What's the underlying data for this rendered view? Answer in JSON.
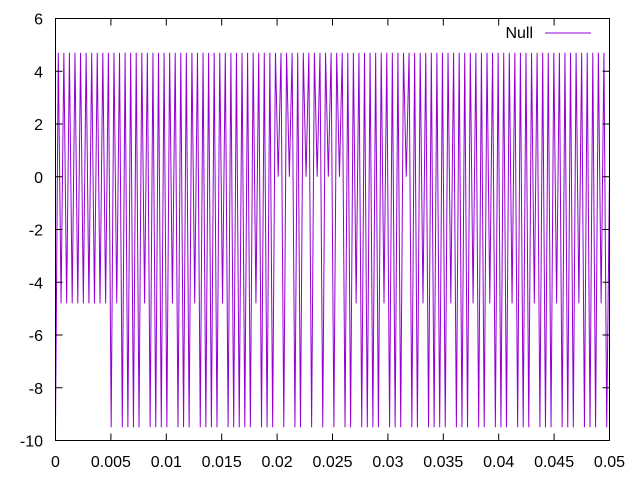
{
  "chart_data": {
    "type": "line",
    "title": "",
    "xlabel": "",
    "ylabel": "",
    "xlim": [
      0,
      0.05
    ],
    "ylim": [
      -10,
      6
    ],
    "xticks": [
      "0",
      "0.005",
      "0.01",
      "0.015",
      "0.02",
      "0.025",
      "0.03",
      "0.035",
      "0.04",
      "0.045",
      "0.05"
    ],
    "yticks": [
      "-10",
      "-8",
      "-6",
      "-4",
      "-2",
      "0",
      "2",
      "4",
      "6"
    ],
    "grid": false,
    "legend_position": "top-right",
    "series": [
      {
        "name": "Null",
        "color": "#9400d3",
        "x_range": [
          0,
          0.05
        ],
        "values": [
          -9.5,
          4.7,
          -4.8,
          4.7,
          -4.8,
          4.7,
          -4.8,
          4.7,
          -4.8,
          4.7,
          -4.8,
          4.7,
          -4.8,
          4.7,
          -4.8,
          4.7,
          -4.8,
          4.7,
          -4.8,
          4.7,
          -9.5,
          4.7,
          -4.8,
          4.7,
          -9.5,
          4.7,
          -9.5,
          4.7,
          -9.5,
          4.7,
          -9.5,
          4.7,
          -4.8,
          4.7,
          -9.5,
          4.7,
          -9.5,
          4.7,
          -9.5,
          4.7,
          -9.5,
          4.7,
          -4.8,
          4.7,
          -9.5,
          4.7,
          -9.5,
          4.7,
          -9.5,
          4.7,
          -4.8,
          4.7,
          -9.5,
          4.7,
          -9.5,
          4.7,
          -9.5,
          4.7,
          -9.5,
          4.7,
          -4.8,
          4.7,
          -9.5,
          4.7,
          -9.5,
          4.7,
          -9.5,
          4.7,
          -9.5,
          4.7,
          -9.5,
          4.7,
          -4.8,
          4.7,
          -9.5,
          4.7,
          -9.5,
          4.7,
          -9.5,
          4.7,
          0,
          4.7,
          -9.5,
          4.7,
          0,
          4.7,
          -9.5,
          4.7,
          -9.5,
          4.7,
          0,
          4.7,
          -9.5,
          4.7,
          0,
          4.7,
          -9.5,
          4.7,
          0,
          4.7,
          -9.5,
          4.7,
          0,
          4.7,
          -9.5,
          4.7,
          -9.5,
          4.7,
          -4.8,
          4.7,
          -9.5,
          4.7,
          -9.5,
          4.7,
          -9.5,
          4.7,
          -9.5,
          4.7,
          -4.8,
          4.7,
          -9.5,
          4.7,
          -9.5,
          4.7,
          -9.5,
          4.7,
          0,
          4.7,
          -9.5,
          4.7,
          -9.5,
          4.7,
          -4.8,
          4.7,
          -9.5,
          4.7,
          -9.5,
          4.7,
          -9.5,
          4.7,
          -9.5,
          4.7,
          -4.8,
          4.7,
          -9.5,
          4.7,
          -9.5,
          4.7,
          -9.5,
          4.7,
          -4.8,
          4.7,
          -9.5,
          4.7,
          -9.5,
          4.7,
          -4.8,
          4.7,
          -9.5,
          4.7,
          -9.5,
          4.7,
          -9.5,
          4.7,
          -4.8,
          4.7,
          -9.5,
          4.7,
          -9.5,
          4.7,
          -9.5,
          4.7,
          -4.8,
          4.7,
          -9.5,
          4.7,
          -9.5,
          4.7,
          -9.5,
          4.7,
          -4.8,
          4.7,
          -9.5,
          4.7,
          -9.5,
          4.7,
          -9.5,
          4.7,
          -4.8,
          4.7,
          -9.5,
          4.7,
          -9.5,
          4.7,
          -9.5,
          4.7,
          -4.8,
          4.7,
          -9.5,
          0
        ]
      }
    ]
  }
}
